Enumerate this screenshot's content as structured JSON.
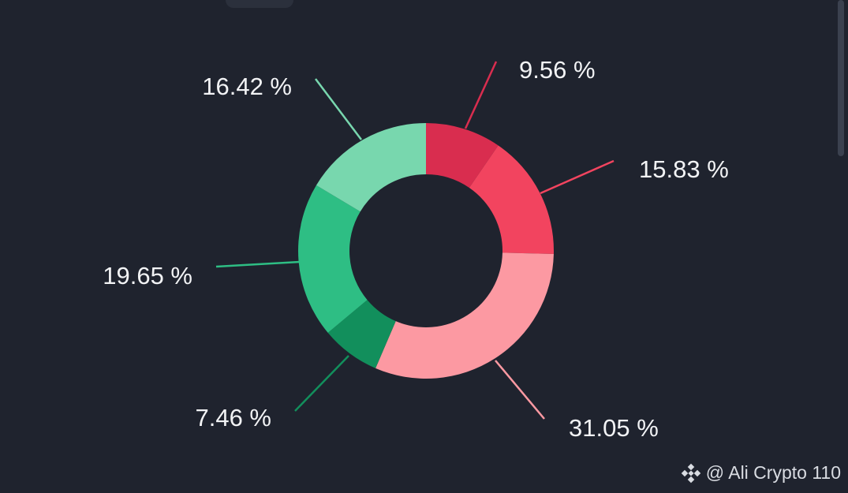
{
  "chart_data": {
    "type": "pie",
    "slices": [
      {
        "label": "9.56 %",
        "value": 9.56,
        "color": "#d92d4f"
      },
      {
        "label": "15.83 %",
        "value": 15.83,
        "color": "#f2445f"
      },
      {
        "label": "31.05 %",
        "value": 31.05,
        "color": "#fc99a2"
      },
      {
        "label": "7.46 %",
        "value": 7.46,
        "color": "#128f5c"
      },
      {
        "label": "19.65 %",
        "value": 19.65,
        "color": "#2ebe84"
      },
      {
        "label": "16.42 %",
        "value": 16.42,
        "color": "#78d7ae"
      }
    ]
  },
  "watermark": {
    "text": "@ Ali Crypto 110",
    "icon": "binance-logo-icon"
  },
  "colors": {
    "background": "#1f232e",
    "label_text": "#f2f3f5"
  }
}
